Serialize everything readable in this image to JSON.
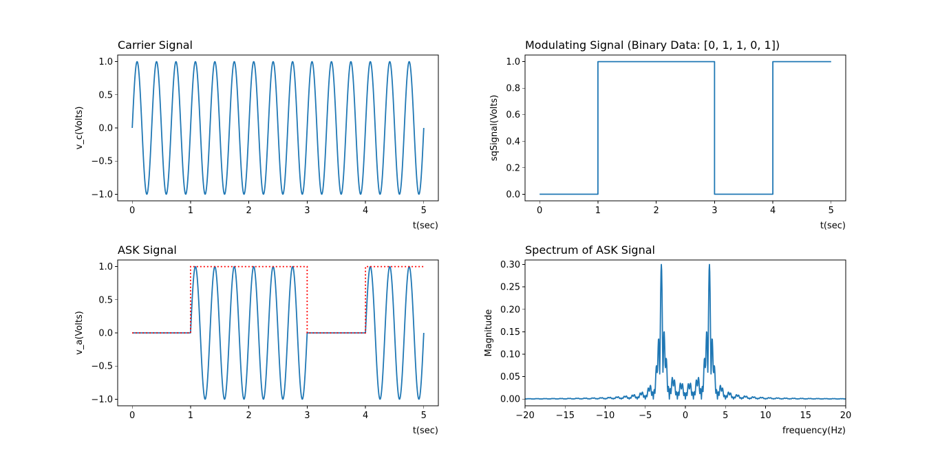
{
  "figure": {
    "background": "#ffffff",
    "line_color": "#1f77b4",
    "envelope_color": "#ff0000"
  },
  "chart_data": [
    {
      "id": "carrier",
      "type": "line",
      "title": "Carrier Signal",
      "xlabel": "t(sec)",
      "ylabel": "v_c(Volts)",
      "xlim": [
        -0.25,
        5.25
      ],
      "ylim": [
        -1.1,
        1.1
      ],
      "xticks": [
        0,
        1,
        2,
        3,
        4,
        5
      ],
      "yticks": [
        -1.0,
        -0.5,
        0.0,
        0.5,
        1.0
      ],
      "xtick_labels": [
        "0",
        "1",
        "2",
        "3",
        "4",
        "5"
      ],
      "ytick_labels": [
        "−1.0",
        "−0.5",
        "0.0",
        "0.5",
        "1.0"
      ],
      "series": [
        {
          "function": "sin(2*pi*f*t)",
          "frequency_hz": 3,
          "amplitude": 1,
          "t_range": [
            0,
            5
          ],
          "color": "#1f77b4",
          "style": "solid"
        }
      ]
    },
    {
      "id": "modulating",
      "type": "line",
      "title": "Modulating Signal (Binary Data: [0, 1, 1, 0, 1])",
      "xlabel": "t(sec)",
      "ylabel": "sqSignal(Volts)",
      "xlim": [
        -0.25,
        5.25
      ],
      "ylim": [
        -0.05,
        1.05
      ],
      "xticks": [
        0,
        1,
        2,
        3,
        4,
        5
      ],
      "yticks": [
        0.0,
        0.2,
        0.4,
        0.6,
        0.8,
        1.0
      ],
      "xtick_labels": [
        "0",
        "1",
        "2",
        "3",
        "4",
        "5"
      ],
      "ytick_labels": [
        "0.0",
        "0.2",
        "0.4",
        "0.6",
        "0.8",
        "1.0"
      ],
      "bits": [
        0,
        1,
        1,
        0,
        1
      ],
      "series": [
        {
          "function": "step",
          "x": [
            0,
            1,
            1,
            3,
            3,
            4,
            4,
            5
          ],
          "y": [
            0,
            0,
            1,
            1,
            0,
            0,
            1,
            1
          ],
          "color": "#1f77b4",
          "style": "solid"
        }
      ]
    },
    {
      "id": "ask",
      "type": "line",
      "title": "ASK Signal",
      "xlabel": "t(sec)",
      "ylabel": "v_a(Volts)",
      "xlim": [
        -0.25,
        5.25
      ],
      "ylim": [
        -1.1,
        1.1
      ],
      "xticks": [
        0,
        1,
        2,
        3,
        4,
        5
      ],
      "yticks": [
        -1.0,
        -0.5,
        0.0,
        0.5,
        1.0
      ],
      "xtick_labels": [
        "0",
        "1",
        "2",
        "3",
        "4",
        "5"
      ],
      "ytick_labels": [
        "−1.0",
        "−0.5",
        "0.0",
        "0.5",
        "1.0"
      ],
      "bits": [
        0,
        1,
        1,
        0,
        1
      ],
      "series": [
        {
          "function": "bits*sin(2*pi*f*t)",
          "frequency_hz": 3,
          "amplitude": 1,
          "t_range": [
            0,
            5
          ],
          "color": "#1f77b4",
          "style": "solid"
        },
        {
          "function": "step",
          "x": [
            0,
            1,
            1,
            3,
            3,
            4,
            4,
            5
          ],
          "y": [
            0,
            0,
            1,
            1,
            0,
            0,
            1,
            1
          ],
          "color": "#ff0000",
          "style": "dotted"
        }
      ]
    },
    {
      "id": "spectrum",
      "type": "line",
      "title": "Spectrum of ASK Signal",
      "xlabel": "frequency(Hz)",
      "ylabel": "Magnitude",
      "xlim": [
        -20,
        20
      ],
      "ylim": [
        -0.015,
        0.31
      ],
      "xticks": [
        -20,
        -15,
        -10,
        -5,
        0,
        5,
        10,
        15,
        20
      ],
      "yticks": [
        0.0,
        0.05,
        0.1,
        0.15,
        0.2,
        0.25,
        0.3
      ],
      "xtick_labels": [
        "−20",
        "−15",
        "−10",
        "−5",
        "0",
        "5",
        "10",
        "15",
        "20"
      ],
      "ytick_labels": [
        "0.00",
        "0.05",
        "0.10",
        "0.15",
        "0.20",
        "0.25",
        "0.30"
      ],
      "series": [
        {
          "function": "abs(fft(ask))/N",
          "peak_frequencies_hz": [
            -3,
            3
          ],
          "peak_magnitude": 0.3,
          "color": "#1f77b4",
          "style": "solid"
        }
      ]
    }
  ]
}
